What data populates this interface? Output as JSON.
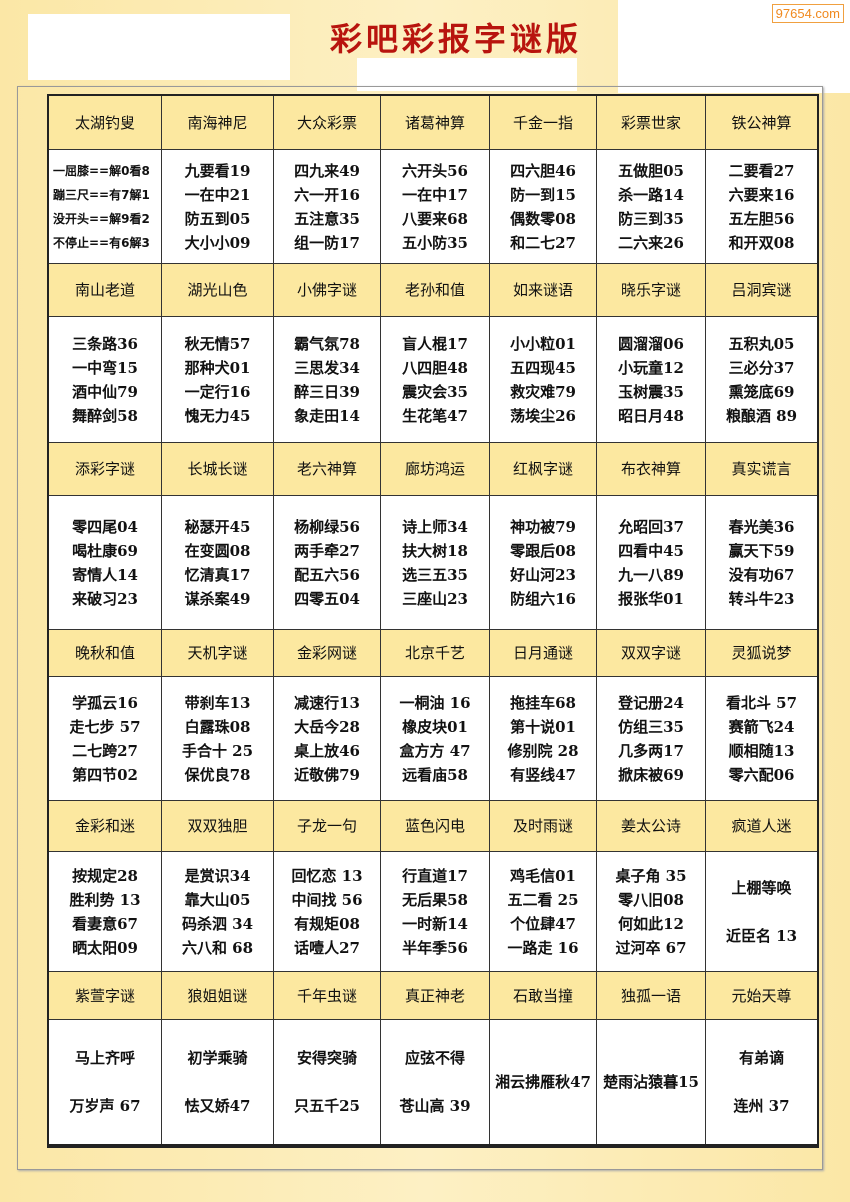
{
  "title": "彩吧彩报字谜版",
  "watermark": "97654.com",
  "sections": [
    {
      "headers": [
        "太湖钓叟",
        "南海神尼",
        "大众彩票",
        "诸葛神算",
        "千金一指",
        "彩票世家",
        "铁公神算"
      ],
      "cells": [
        [
          "一屈膝==解0看8",
          "蹦三尺==有7解1",
          "没开头==解9看2",
          "不停止==有6解3"
        ],
        [
          "九要看19",
          "一在中21",
          "防五到05",
          "大小小09"
        ],
        [
          "四九来49",
          "六一开16",
          "五注意35",
          "组一防17"
        ],
        [
          "六开头56",
          "一在中17",
          "八要来68",
          "五小防35"
        ],
        [
          "四六胆46",
          "防一到15",
          "偶数零08",
          "和二七27"
        ],
        [
          "五做胆05",
          "杀一路14",
          "防三到35",
          "二六来26"
        ],
        [
          "二要看27",
          "六要来16",
          "五左胆56",
          "和开双08"
        ]
      ]
    },
    {
      "headers": [
        "南山老道",
        "湖光山色",
        "小佛字谜",
        "老孙和值",
        "如来谜语",
        "晓乐字谜",
        "吕洞宾谜"
      ],
      "cells": [
        [
          "三条路36",
          "一中弯15",
          "酒中仙79",
          "舞醉剑58"
        ],
        [
          "秋无情57",
          "那种犬01",
          "一定行16",
          "愧无力45"
        ],
        [
          "霸气氛78",
          "三思发34",
          "醉三日39",
          "象走田14"
        ],
        [
          "盲人棍17",
          "八四胆48",
          "震灾会35",
          "生花笔47"
        ],
        [
          "小小粒01",
          "五四现45",
          "救灾难79",
          "荡埃尘26"
        ],
        [
          "圆溜溜06",
          "小玩童12",
          "玉树震35",
          "昭日月48"
        ],
        [
          "五积丸05",
          "三必分37",
          "熏笼底69",
          "粮酿酒 89"
        ]
      ]
    },
    {
      "headers": [
        "添彩字谜",
        "长城长谜",
        "老六神算",
        "廊坊鸿运",
        "红枫字谜",
        "布衣神算",
        "真实谎言"
      ],
      "cells": [
        [
          "零四尾04",
          "喝杜康69",
          "寄情人14",
          "来破习23"
        ],
        [
          "秘瑟开45",
          "在变圆08",
          "忆清真17",
          "谋杀案49"
        ],
        [
          "杨柳绿56",
          "两手牵27",
          "配五六56",
          "四零五04"
        ],
        [
          "诗上师34",
          "扶大树18",
          "选三五35",
          "三座山23"
        ],
        [
          "神功被79",
          "零跟后08",
          "好山河23",
          "防组六16"
        ],
        [
          "允昭回37",
          "四看中45",
          "九一八89",
          "报张华01"
        ],
        [
          "春光美36",
          "赢天下59",
          "没有功67",
          "转斗牛23"
        ]
      ]
    },
    {
      "headers": [
        "晚秋和值",
        "天机字谜",
        "金彩网谜",
        "北京千艺",
        "日月通谜",
        "双双字谜",
        "灵狐说梦"
      ],
      "cells": [
        [
          "学孤云16",
          "走七步 57",
          "二七跨27",
          "第四节02"
        ],
        [
          "带刹车13",
          "白露珠08",
          "手合十 25",
          "保优良78"
        ],
        [
          "减速行13",
          "大岳今28",
          "桌上放46",
          "近敬佛79"
        ],
        [
          "一桐油 16",
          "橡皮块01",
          "盒方方 47",
          "远看庙58"
        ],
        [
          "拖挂车68",
          "第十说01",
          "修别院 28",
          "有竖线47"
        ],
        [
          "登记册24",
          "仿组三35",
          "几多两17",
          "掀床被69"
        ],
        [
          "看北斗 57",
          "赛箭飞24",
          "顺相随13",
          "零六配06"
        ]
      ]
    },
    {
      "headers": [
        "金彩和迷",
        "双双独胆",
        "子龙一句",
        "蓝色闪电",
        "及时雨谜",
        "姜太公诗",
        "疯道人迷"
      ],
      "cells": [
        [
          "按规定28",
          "胜利势 13",
          "看妻意67",
          "晒太阳09"
        ],
        [
          "是赏识34",
          "靠大山05",
          "码杀泗 34",
          "六八和 68"
        ],
        [
          "回忆恋 13",
          "中间找 56",
          "有规矩08",
          "话噎人27"
        ],
        [
          "行直道17",
          "无后果58",
          "一时新14",
          "半年季56"
        ],
        [
          "鸡毛信01",
          "五二看 25",
          "个位肆47",
          "一路走 16"
        ],
        [
          "桌子角 35",
          "零八旧08",
          "何如此12",
          "过河卒 67"
        ],
        [
          "上棚等唤",
          "近臣名 13"
        ]
      ]
    },
    {
      "headers": [
        "紫萱字谜",
        "狼姐姐谜",
        "千年虫谜",
        "真正神老",
        "石敢当撞",
        "独孤一语",
        "元始天尊"
      ],
      "cells": [
        [
          "马上齐呼",
          "万岁声 67"
        ],
        [
          "初学乘骑",
          "怯又娇47"
        ],
        [
          "安得突骑",
          "只五千25"
        ],
        [
          "应弦不得",
          "苍山高 39"
        ],
        [
          "湘云拂雁秋47"
        ],
        [
          "楚雨沾猿暮15"
        ],
        [
          "有弟谪",
          "连州 37"
        ]
      ]
    }
  ]
}
